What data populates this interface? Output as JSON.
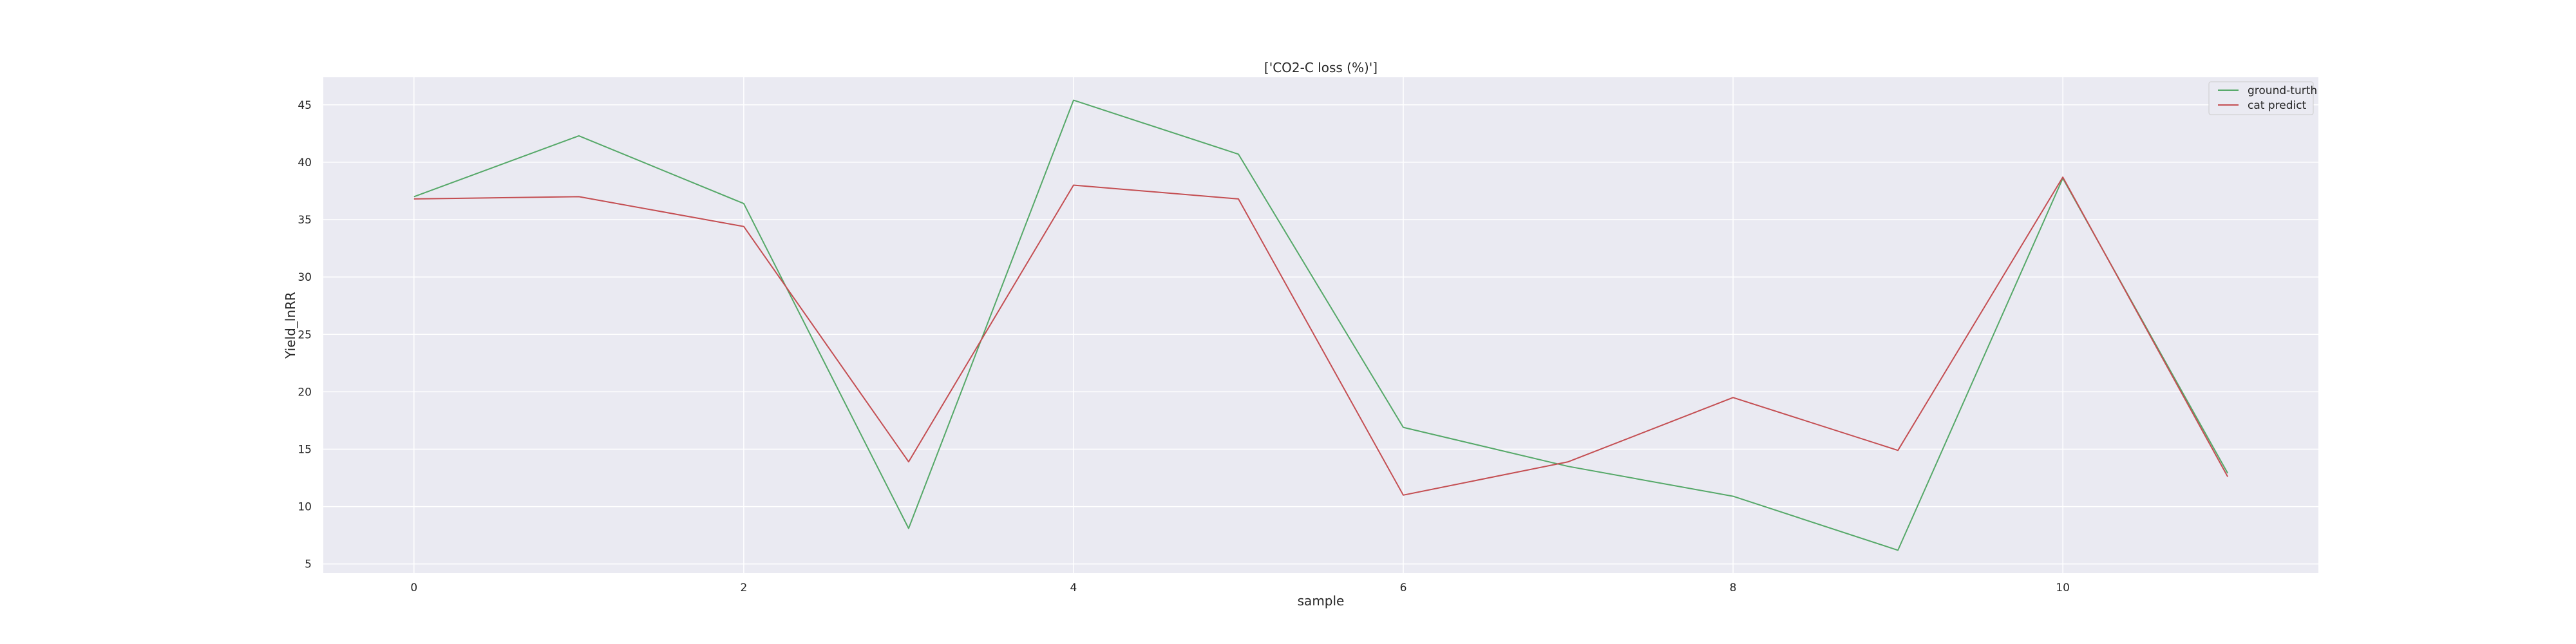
{
  "chart_data": {
    "type": "line",
    "title": "['CO2-C loss (%)']",
    "xlabel": "sample",
    "ylabel": "Yield_lnRR",
    "x": [
      0,
      1,
      2,
      3,
      4,
      5,
      6,
      7,
      8,
      9,
      10,
      11
    ],
    "xlim": [
      -0.55,
      11.55
    ],
    "ylim": [
      4.2,
      47.4
    ],
    "x_ticks": [
      0,
      2,
      4,
      6,
      8,
      10
    ],
    "y_ticks": [
      5,
      10,
      15,
      20,
      25,
      30,
      35,
      40,
      45
    ],
    "grid": true,
    "legend_position": "top-right",
    "series": [
      {
        "name": "ground-turth",
        "color": "#55a868",
        "values": [
          37.0,
          42.3,
          36.4,
          8.1,
          45.4,
          40.7,
          16.9,
          13.5,
          10.9,
          6.2,
          38.6,
          12.9
        ]
      },
      {
        "name": "cat predict",
        "color": "#c44e52",
        "values": [
          36.8,
          37.0,
          34.4,
          13.9,
          38.0,
          36.8,
          11.0,
          13.9,
          19.5,
          14.9,
          38.7,
          12.6
        ]
      }
    ]
  }
}
